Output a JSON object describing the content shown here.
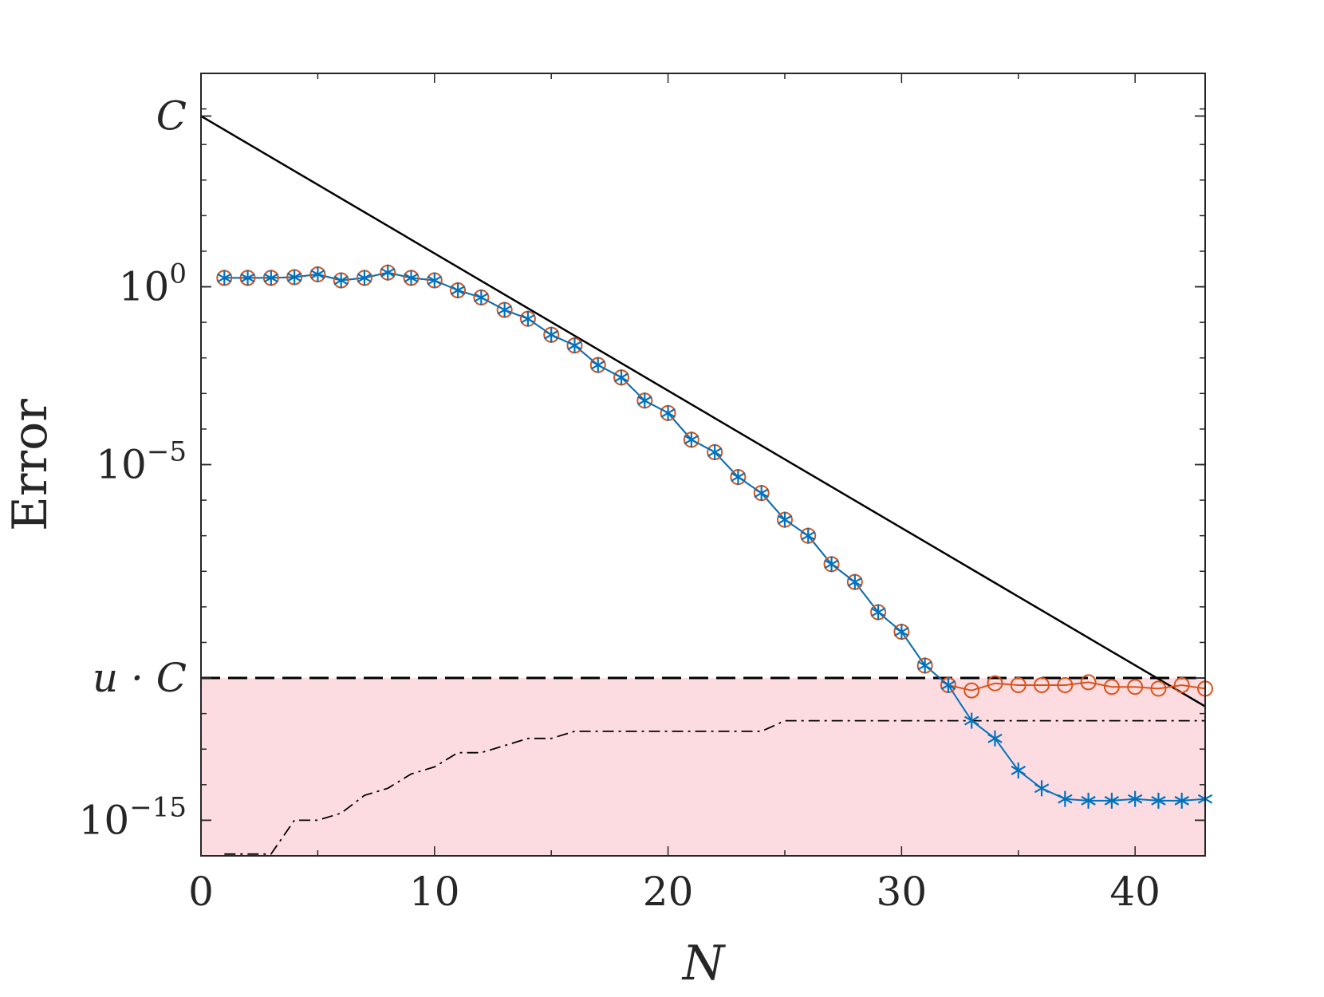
{
  "chart_data": {
    "type": "line",
    "xlabel": "N",
    "ylabel": "Error",
    "y_scale": "log",
    "xlim": [
      0,
      43
    ],
    "ylim_log10": [
      -16,
      6
    ],
    "x_ticks": [
      0,
      10,
      20,
      30,
      40
    ],
    "y_ticks": [
      {
        "log10": 4.8,
        "base": "C",
        "exp": ""
      },
      {
        "log10": 0,
        "base": "10",
        "exp": "0"
      },
      {
        "log10": -5,
        "base": "10",
        "exp": "−5"
      },
      {
        "log10": -11.0,
        "base": "u · C",
        "exp": ""
      },
      {
        "log10": -15,
        "base": "10",
        "exp": "−15"
      }
    ],
    "grid": false,
    "legend": "none",
    "shaded_region": {
      "color": "#fcdce1",
      "from_log10": -16,
      "to_log10": -11.0
    },
    "reference_lines": [
      {
        "kind": "solid",
        "color": "#000000",
        "x": [
          0,
          43
        ],
        "log10_y": [
          4.8,
          -11.8
        ]
      },
      {
        "kind": "dashed",
        "color": "#000000",
        "x": [
          0,
          43
        ],
        "log10_y": [
          -11.0,
          -11.0
        ]
      }
    ],
    "series": [
      {
        "kind": "dashdot",
        "color": "#000000",
        "x": [
          1,
          2,
          3,
          4,
          5,
          6,
          7,
          8,
          9,
          10,
          11,
          12,
          13,
          14,
          15,
          16,
          17,
          18,
          19,
          20,
          21,
          22,
          23,
          24,
          25,
          26,
          27,
          28,
          29,
          30,
          31,
          32,
          33,
          34,
          35,
          36,
          37,
          38,
          39,
          40,
          41,
          42,
          43
        ],
        "log10_y": [
          -15.95,
          -15.95,
          -15.95,
          -15.0,
          -15.0,
          -14.8,
          -14.3,
          -14.1,
          -13.7,
          -13.5,
          -13.1,
          -13.1,
          -12.9,
          -12.7,
          -12.7,
          -12.5,
          -12.5,
          -12.5,
          -12.5,
          -12.5,
          -12.5,
          -12.5,
          -12.5,
          -12.5,
          -12.2,
          -12.2,
          -12.2,
          -12.2,
          -12.2,
          -12.2,
          -12.2,
          -12.2,
          -12.2,
          -12.2,
          -12.2,
          -12.2,
          -12.2,
          -12.2,
          -12.2,
          -12.2,
          -12.2,
          -12.2,
          -12.2
        ]
      },
      {
        "kind": "line-circle",
        "color": "#d95319",
        "x": [
          1,
          2,
          3,
          4,
          5,
          6,
          7,
          8,
          9,
          10,
          11,
          12,
          13,
          14,
          15,
          16,
          17,
          18,
          19,
          20,
          21,
          22,
          23,
          24,
          25,
          26,
          27,
          28,
          29,
          30,
          31,
          32,
          33,
          34,
          35,
          36,
          37,
          38,
          39,
          40,
          41,
          42,
          43
        ],
        "log10_y": [
          0.25,
          0.25,
          0.25,
          0.27,
          0.35,
          0.18,
          0.25,
          0.4,
          0.25,
          0.18,
          -0.1,
          -0.3,
          -0.65,
          -0.9,
          -1.35,
          -1.65,
          -2.2,
          -2.55,
          -3.2,
          -3.55,
          -4.3,
          -4.65,
          -5.35,
          -5.8,
          -6.55,
          -7.0,
          -7.8,
          -8.3,
          -9.15,
          -9.7,
          -10.65,
          -11.2,
          -11.35,
          -11.15,
          -11.2,
          -11.2,
          -11.2,
          -11.12,
          -11.25,
          -11.25,
          -11.3,
          -11.2,
          -11.3
        ]
      },
      {
        "kind": "line-star",
        "color": "#0072bd",
        "x": [
          1,
          2,
          3,
          4,
          5,
          6,
          7,
          8,
          9,
          10,
          11,
          12,
          13,
          14,
          15,
          16,
          17,
          18,
          19,
          20,
          21,
          22,
          23,
          24,
          25,
          26,
          27,
          28,
          29,
          30,
          31,
          32,
          33,
          34,
          35,
          36,
          37,
          38,
          39,
          40,
          41,
          42,
          43
        ],
        "log10_y": [
          0.25,
          0.25,
          0.25,
          0.27,
          0.35,
          0.18,
          0.25,
          0.4,
          0.25,
          0.18,
          -0.1,
          -0.3,
          -0.65,
          -0.9,
          -1.35,
          -1.65,
          -2.2,
          -2.55,
          -3.2,
          -3.55,
          -4.3,
          -4.65,
          -5.35,
          -5.8,
          -6.55,
          -7.0,
          -7.8,
          -8.3,
          -9.15,
          -9.7,
          -10.65,
          -11.2,
          -12.2,
          -12.7,
          -13.6,
          -14.1,
          -14.4,
          -14.45,
          -14.45,
          -14.4,
          -14.45,
          -14.45,
          -14.4
        ]
      }
    ]
  }
}
